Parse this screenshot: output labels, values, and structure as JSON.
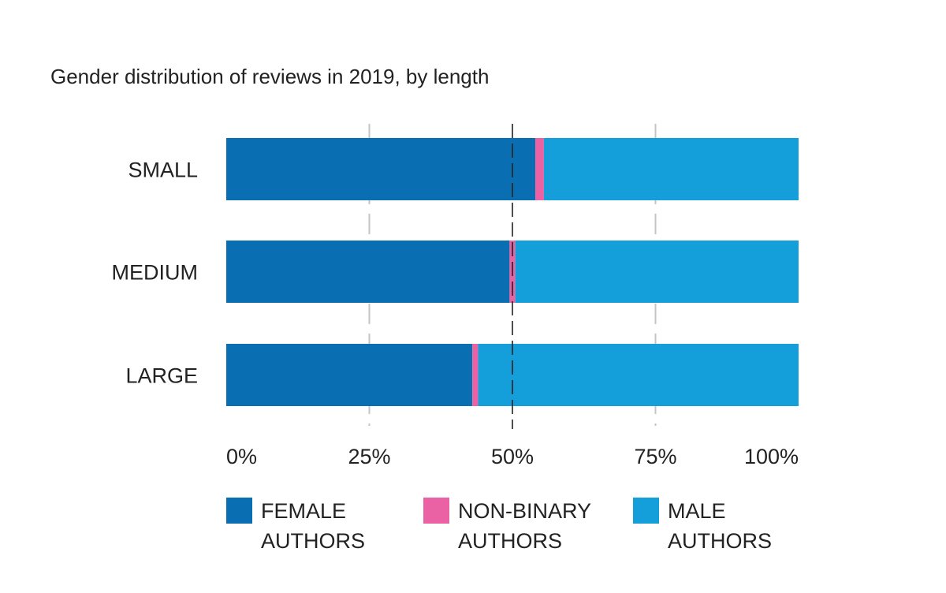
{
  "chart_data": {
    "type": "bar",
    "orientation": "horizontal",
    "stacked": true,
    "title": "Gender distribution of reviews in 2019, by length",
    "categories": [
      "SMALL",
      "MEDIUM",
      "LARGE"
    ],
    "series": [
      {
        "name": "FEMALE AUTHORS",
        "legend_lines": [
          "FEMALE",
          "AUTHORS"
        ],
        "color": "#0a6fb2",
        "values": [
          54,
          49.5,
          43
        ]
      },
      {
        "name": "NON-BINARY AUTHORS",
        "legend_lines": [
          "NON-BINARY",
          "AUTHORS"
        ],
        "color": "#eb62a4",
        "values": [
          1.5,
          1,
          1
        ]
      },
      {
        "name": "MALE AUTHORS",
        "legend_lines": [
          "MALE",
          "AUTHORS"
        ],
        "color": "#149fdb",
        "values": [
          44.5,
          49.5,
          56
        ]
      }
    ],
    "xlim": [
      0,
      100
    ],
    "xticks": [
      0,
      25,
      50,
      75,
      100
    ],
    "xtick_labels": [
      "0%",
      "25%",
      "50%",
      "75%",
      "100%"
    ],
    "reference_line": 50,
    "grid": true,
    "legend_position": "bottom"
  }
}
